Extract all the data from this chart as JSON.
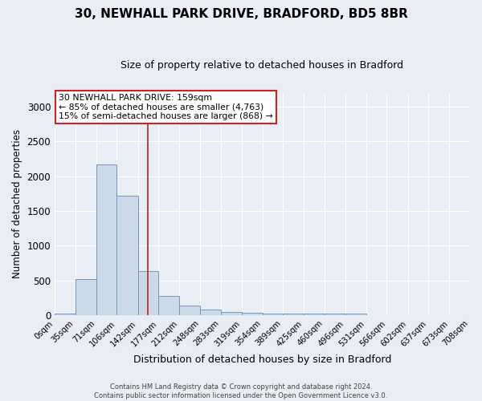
{
  "title": "30, NEWHALL PARK DRIVE, BRADFORD, BD5 8BR",
  "subtitle": "Size of property relative to detached houses in Bradford",
  "xlabel": "Distribution of detached houses by size in Bradford",
  "ylabel": "Number of detached properties",
  "bar_color": "#ccd9e8",
  "bar_edge_color": "#7399bb",
  "bins": [
    0,
    35,
    71,
    106,
    142,
    177,
    212,
    248,
    283,
    319,
    354,
    389,
    425,
    460,
    496,
    531,
    566,
    602,
    637,
    673,
    708
  ],
  "values": [
    20,
    525,
    2170,
    1720,
    635,
    275,
    135,
    80,
    48,
    38,
    30,
    20,
    25,
    25,
    22,
    5,
    3,
    2,
    1,
    1
  ],
  "tick_labels": [
    "0sqm",
    "35sqm",
    "71sqm",
    "106sqm",
    "142sqm",
    "177sqm",
    "212sqm",
    "248sqm",
    "283sqm",
    "319sqm",
    "354sqm",
    "389sqm",
    "425sqm",
    "460sqm",
    "496sqm",
    "531sqm",
    "566sqm",
    "602sqm",
    "637sqm",
    "673sqm",
    "708sqm"
  ],
  "property_size": 159,
  "vline_color": "#bb2222",
  "ylim": [
    0,
    3200
  ],
  "yticks": [
    0,
    500,
    1000,
    1500,
    2000,
    2500,
    3000
  ],
  "annotation_title": "30 NEWHALL PARK DRIVE: 159sqm",
  "annotation_line1": "← 85% of detached houses are smaller (4,763)",
  "annotation_line2": "15% of semi-detached houses are larger (868) →",
  "annotation_box_color": "#ffffff",
  "annotation_border_color": "#cc2222",
  "footer_line1": "Contains HM Land Registry data © Crown copyright and database right 2024.",
  "footer_line2": "Contains public sector information licensed under the Open Government Licence v3.0.",
  "background_color": "#e8eef4",
  "grid_color": "#ffffff",
  "title_fontsize": 11,
  "subtitle_fontsize": 9
}
